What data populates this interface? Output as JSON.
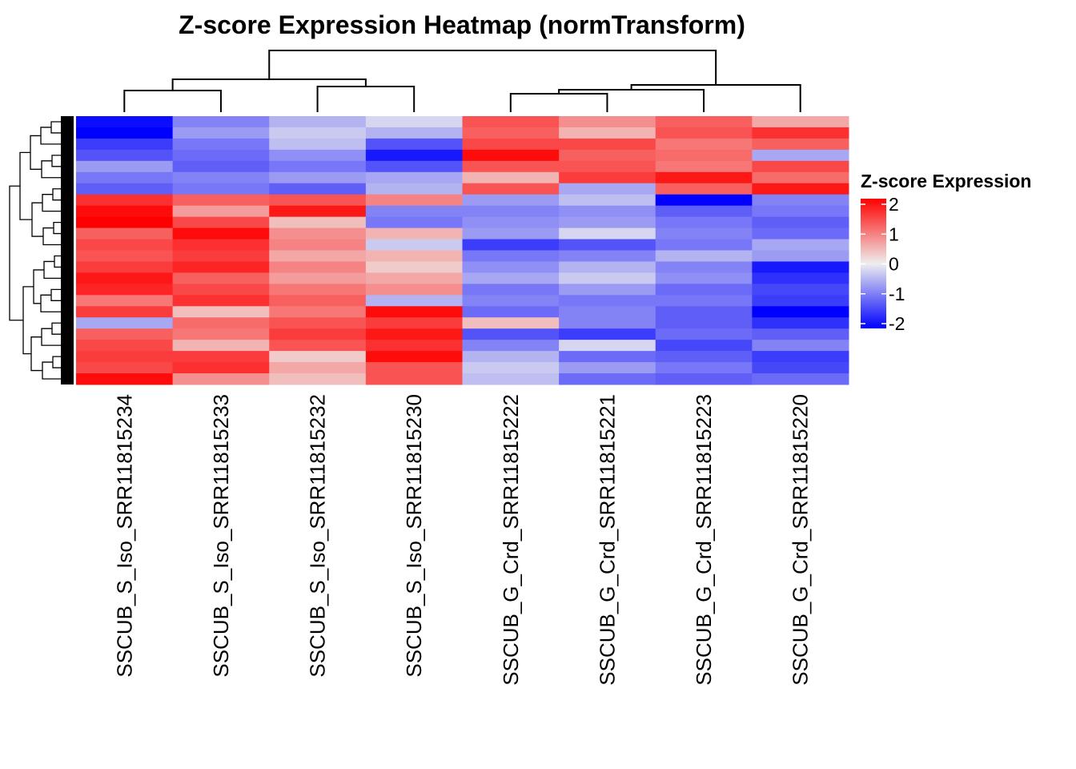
{
  "chart_data": {
    "type": "heatmap",
    "title": "Z-score Expression Heatmap (normTransform)",
    "columns": [
      "SSCUB_S_Iso_SRR11815234",
      "SSCUB_S_Iso_SRR11815233",
      "SSCUB_S_Iso_SRR11815232",
      "SSCUB_S_Iso_SRR11815230",
      "SSCUB_G_Crd_SRR11815222",
      "SSCUB_G_Crd_SRR11815221",
      "SSCUB_G_Crd_SRR11815223",
      "SSCUB_G_Crd_SRR11815220"
    ],
    "values": [
      [
        -1.9,
        -0.9,
        -0.5,
        -0.2,
        1.3,
        0.8,
        1.2,
        0.6
      ],
      [
        -2.0,
        -0.7,
        -0.3,
        -0.5,
        1.2,
        0.5,
        1.3,
        1.6
      ],
      [
        -1.5,
        -1.0,
        -0.4,
        -1.3,
        1.4,
        1.4,
        1.0,
        1.2
      ],
      [
        -1.3,
        -1.1,
        -0.8,
        -1.8,
        1.9,
        1.2,
        1.1,
        -0.6
      ],
      [
        -0.7,
        -1.2,
        -1.0,
        -1.3,
        1.3,
        1.3,
        1.0,
        1.4
      ],
      [
        -1.0,
        -0.9,
        -0.7,
        -0.6,
        0.5,
        1.5,
        1.8,
        1.1
      ],
      [
        -1.2,
        -1.0,
        -1.2,
        -0.5,
        1.3,
        -0.6,
        1.2,
        1.8
      ],
      [
        1.6,
        1.2,
        1.3,
        0.9,
        -0.7,
        -0.4,
        -2.0,
        -0.9
      ],
      [
        1.9,
        0.7,
        1.8,
        -0.9,
        -0.9,
        -0.8,
        -1.2,
        -1.0
      ],
      [
        2.0,
        1.4,
        0.4,
        -1.0,
        -0.8,
        -0.7,
        -1.0,
        -1.2
      ],
      [
        1.2,
        1.9,
        0.8,
        0.5,
        -0.7,
        -0.2,
        -0.9,
        -1.1
      ],
      [
        1.4,
        1.6,
        0.9,
        -0.3,
        -1.5,
        -1.3,
        -1.0,
        -0.6
      ],
      [
        1.3,
        1.5,
        0.6,
        0.5,
        -1.0,
        -0.9,
        -0.5,
        -0.7
      ],
      [
        1.5,
        1.7,
        0.9,
        0.3,
        -0.8,
        -0.5,
        -0.9,
        -1.8
      ],
      [
        1.8,
        1.2,
        0.7,
        0.6,
        -0.6,
        -0.3,
        -0.8,
        -1.6
      ],
      [
        1.7,
        1.4,
        1.0,
        0.8,
        -1.0,
        -0.7,
        -1.1,
        -1.4
      ],
      [
        1.0,
        1.6,
        1.2,
        -0.5,
        -0.9,
        -1.0,
        -1.0,
        -1.5
      ],
      [
        1.5,
        0.4,
        1.0,
        1.9,
        -1.1,
        -0.9,
        -1.2,
        -2.0
      ],
      [
        -0.6,
        1.1,
        1.3,
        1.5,
        0.4,
        -0.9,
        -1.2,
        -1.6
      ],
      [
        1.2,
        1.0,
        1.5,
        1.8,
        -1.3,
        -1.5,
        -1.1,
        -1.2
      ],
      [
        1.4,
        0.5,
        1.3,
        1.6,
        -0.9,
        -0.2,
        -1.4,
        -0.9
      ],
      [
        1.5,
        1.5,
        0.3,
        1.9,
        -0.5,
        -1.1,
        -1.2,
        -1.5
      ],
      [
        1.4,
        1.6,
        0.6,
        1.3,
        -0.3,
        -0.7,
        -1.0,
        -1.4
      ],
      [
        1.9,
        0.8,
        0.4,
        1.3,
        -0.4,
        -1.1,
        -1.2,
        -1.1
      ]
    ],
    "color_scale": {
      "min": -2,
      "mid": 0,
      "max": 2,
      "low_color": "#0000ff",
      "mid_color": "#eeeeee",
      "high_color": "#ff0000"
    },
    "legend": {
      "title": "Z-score Expression",
      "ticks": [
        "2",
        "1",
        "0",
        "-1",
        "-2"
      ],
      "placement": "right"
    },
    "column_dendrogram": true,
    "row_dendrogram": true
  }
}
